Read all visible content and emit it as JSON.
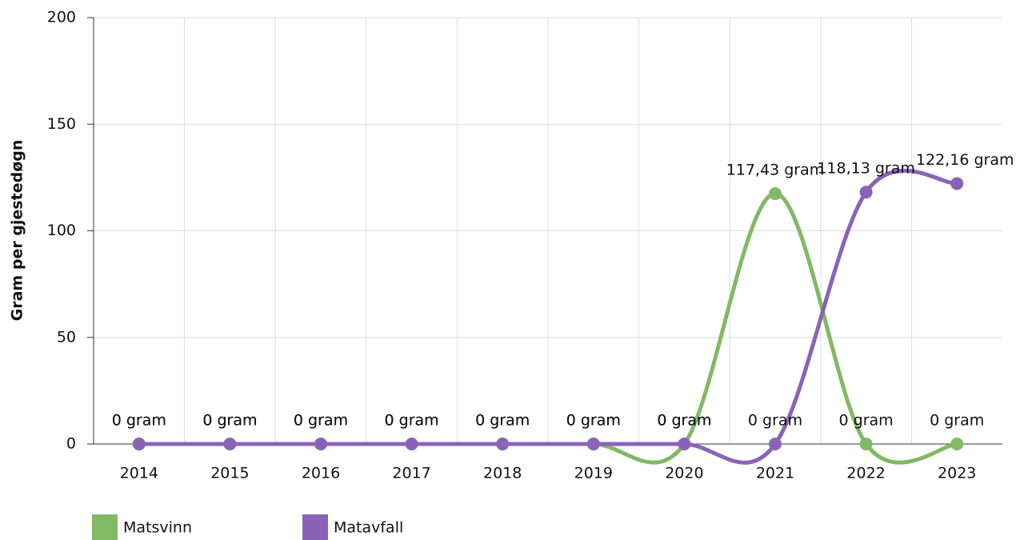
{
  "chart_data": {
    "type": "line",
    "y_label": "Gram per gjestedøgn",
    "categories": [
      "2014",
      "2015",
      "2016",
      "2017",
      "2018",
      "2019",
      "2020",
      "2021",
      "2022",
      "2023"
    ],
    "series": [
      {
        "name": "Matsvinn",
        "color": "#82b964",
        "values": [
          0,
          0,
          0,
          0,
          0,
          0,
          0,
          117.43,
          0,
          0
        ],
        "value_labels": [
          "0 gram",
          "0 gram",
          "0 gram",
          "0 gram",
          "0 gram",
          "0 gram",
          "0 gram",
          "117,43 gram",
          "0 gram",
          "0 gram"
        ]
      },
      {
        "name": "Matavfall",
        "color": "#8a63b8",
        "values": [
          0,
          0,
          0,
          0,
          0,
          0,
          0,
          0,
          118.13,
          122.16
        ],
        "value_labels": [
          "0 gram",
          "0 gram",
          "0 gram",
          "0 gram",
          "0 gram",
          "0 gram",
          "0 gram",
          "0 gram",
          "118,13 gram",
          "122,16 gram"
        ]
      }
    ],
    "ylim": [
      0,
      200
    ],
    "yticks": [
      0,
      50,
      100,
      150,
      200
    ],
    "grid": true,
    "legend": "bottom-left"
  }
}
